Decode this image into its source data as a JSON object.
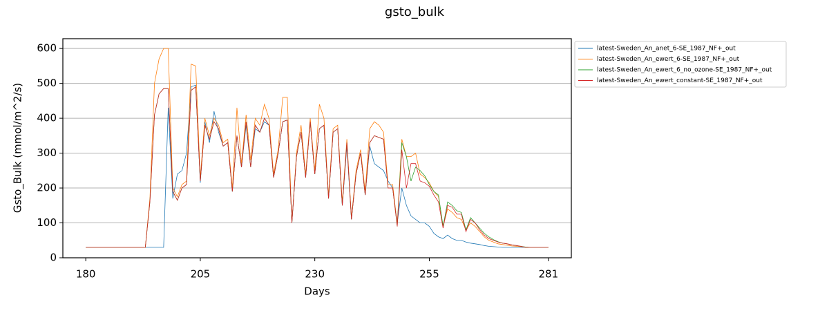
{
  "chart_data": {
    "type": "line",
    "title": "gsto_bulk",
    "x_label": "Days",
    "y_label": "Gsto_Bulk (mmol/m^2/s)",
    "x": [
      180,
      181,
      182,
      183,
      184,
      185,
      186,
      187,
      188,
      189,
      190,
      191,
      192,
      193,
      194,
      195,
      196,
      197,
      198,
      199,
      200,
      201,
      202,
      203,
      204,
      205,
      206,
      207,
      208,
      209,
      210,
      211,
      212,
      213,
      214,
      215,
      216,
      217,
      218,
      219,
      220,
      221,
      222,
      223,
      224,
      225,
      226,
      227,
      228,
      229,
      230,
      231,
      232,
      233,
      234,
      235,
      236,
      237,
      238,
      239,
      240,
      241,
      242,
      243,
      244,
      245,
      246,
      247,
      248,
      249,
      250,
      251,
      252,
      253,
      254,
      255,
      256,
      257,
      258,
      259,
      260,
      261,
      262,
      263,
      264,
      265,
      266,
      267,
      268,
      269,
      270,
      271,
      272,
      273,
      274,
      275,
      276,
      277,
      278,
      279,
      280,
      281
    ],
    "series": [
      {
        "name": "latest-Sweden_An_anet_6-SE_1987_NF+_out",
        "color": "#1f77b4",
        "values": [
          30,
          30,
          30,
          30,
          30,
          30,
          30,
          30,
          30,
          30,
          30,
          30,
          30,
          30,
          30,
          30,
          30,
          30,
          430,
          170,
          240,
          250,
          300,
          490,
          495,
          215,
          390,
          330,
          420,
          360,
          320,
          330,
          190,
          350,
          260,
          380,
          260,
          370,
          360,
          390,
          380,
          230,
          300,
          390,
          395,
          100,
          290,
          360,
          230,
          390,
          240,
          370,
          380,
          170,
          360,
          370,
          150,
          320,
          110,
          240,
          300,
          180,
          320,
          270,
          260,
          250,
          220,
          200,
          100,
          200,
          150,
          120,
          110,
          100,
          100,
          90,
          70,
          60,
          55,
          65,
          55,
          50,
          50,
          45,
          42,
          40,
          38,
          35,
          33,
          32,
          31,
          30,
          30,
          30,
          30,
          30,
          30,
          30,
          30,
          30,
          30,
          30
        ]
      },
      {
        "name": "latest-Sweden_An_ewert_6-SE_1987_NF+_out",
        "color": "#ff7f0e",
        "values": [
          30,
          30,
          30,
          30,
          30,
          30,
          30,
          30,
          30,
          30,
          30,
          30,
          30,
          30,
          170,
          500,
          570,
          600,
          600,
          200,
          175,
          210,
          220,
          555,
          550,
          230,
          400,
          350,
          400,
          380,
          330,
          340,
          200,
          430,
          270,
          410,
          280,
          400,
          380,
          440,
          400,
          240,
          310,
          460,
          460,
          100,
          300,
          380,
          240,
          400,
          250,
          440,
          400,
          180,
          370,
          380,
          160,
          340,
          115,
          250,
          310,
          190,
          370,
          390,
          380,
          360,
          210,
          210,
          95,
          340,
          290,
          290,
          300,
          240,
          230,
          215,
          190,
          175,
          90,
          140,
          130,
          115,
          110,
          80,
          100,
          90,
          75,
          60,
          50,
          45,
          40,
          38,
          36,
          34,
          33,
          32,
          30,
          30,
          30,
          30,
          30,
          30
        ]
      },
      {
        "name": "latest-Sweden_An_ewert_6_no_ozone-SE_1987_NF+_out",
        "color": "#2ca02c",
        "values": [
          30,
          30,
          30,
          30,
          30,
          30,
          30,
          30,
          30,
          30,
          30,
          30,
          30,
          30,
          160,
          410,
          470,
          485,
          485,
          190,
          165,
          200,
          210,
          480,
          490,
          220,
          380,
          340,
          390,
          370,
          320,
          330,
          190,
          350,
          260,
          390,
          260,
          380,
          360,
          400,
          380,
          230,
          300,
          390,
          395,
          100,
          290,
          360,
          230,
          390,
          240,
          370,
          380,
          170,
          360,
          370,
          150,
          330,
          110,
          240,
          300,
          180,
          330,
          350,
          345,
          340,
          200,
          200,
          90,
          330,
          290,
          220,
          260,
          250,
          235,
          210,
          190,
          180,
          90,
          160,
          150,
          135,
          130,
          80,
          115,
          100,
          85,
          70,
          60,
          52,
          46,
          42,
          40,
          37,
          35,
          33,
          31,
          30,
          30,
          30,
          30,
          30
        ]
      },
      {
        "name": "latest-Sweden_An_ewert_constant-SE_1987_NF+_out",
        "color": "#d62728",
        "values": [
          30,
          30,
          30,
          30,
          30,
          30,
          30,
          30,
          30,
          30,
          30,
          30,
          30,
          30,
          160,
          410,
          470,
          485,
          485,
          190,
          165,
          200,
          210,
          480,
          490,
          220,
          380,
          340,
          390,
          370,
          320,
          330,
          190,
          350,
          260,
          390,
          260,
          380,
          360,
          400,
          380,
          230,
          300,
          390,
          395,
          100,
          290,
          360,
          230,
          390,
          240,
          370,
          380,
          170,
          360,
          370,
          150,
          330,
          110,
          240,
          300,
          180,
          330,
          350,
          345,
          340,
          200,
          200,
          90,
          310,
          200,
          270,
          270,
          220,
          215,
          205,
          180,
          160,
          85,
          150,
          145,
          125,
          125,
          75,
          110,
          100,
          80,
          65,
          55,
          50,
          45,
          42,
          40,
          37,
          35,
          33,
          30,
          30,
          30,
          30,
          30,
          30
        ]
      }
    ],
    "xlim": [
      175,
      286
    ],
    "xticks": [
      180,
      205,
      230,
      255,
      281
    ],
    "ylim": [
      0,
      628
    ],
    "yticks": [
      0,
      100,
      200,
      300,
      400,
      500,
      600
    ],
    "grid": true,
    "legend_position": "outside-upper-right"
  }
}
